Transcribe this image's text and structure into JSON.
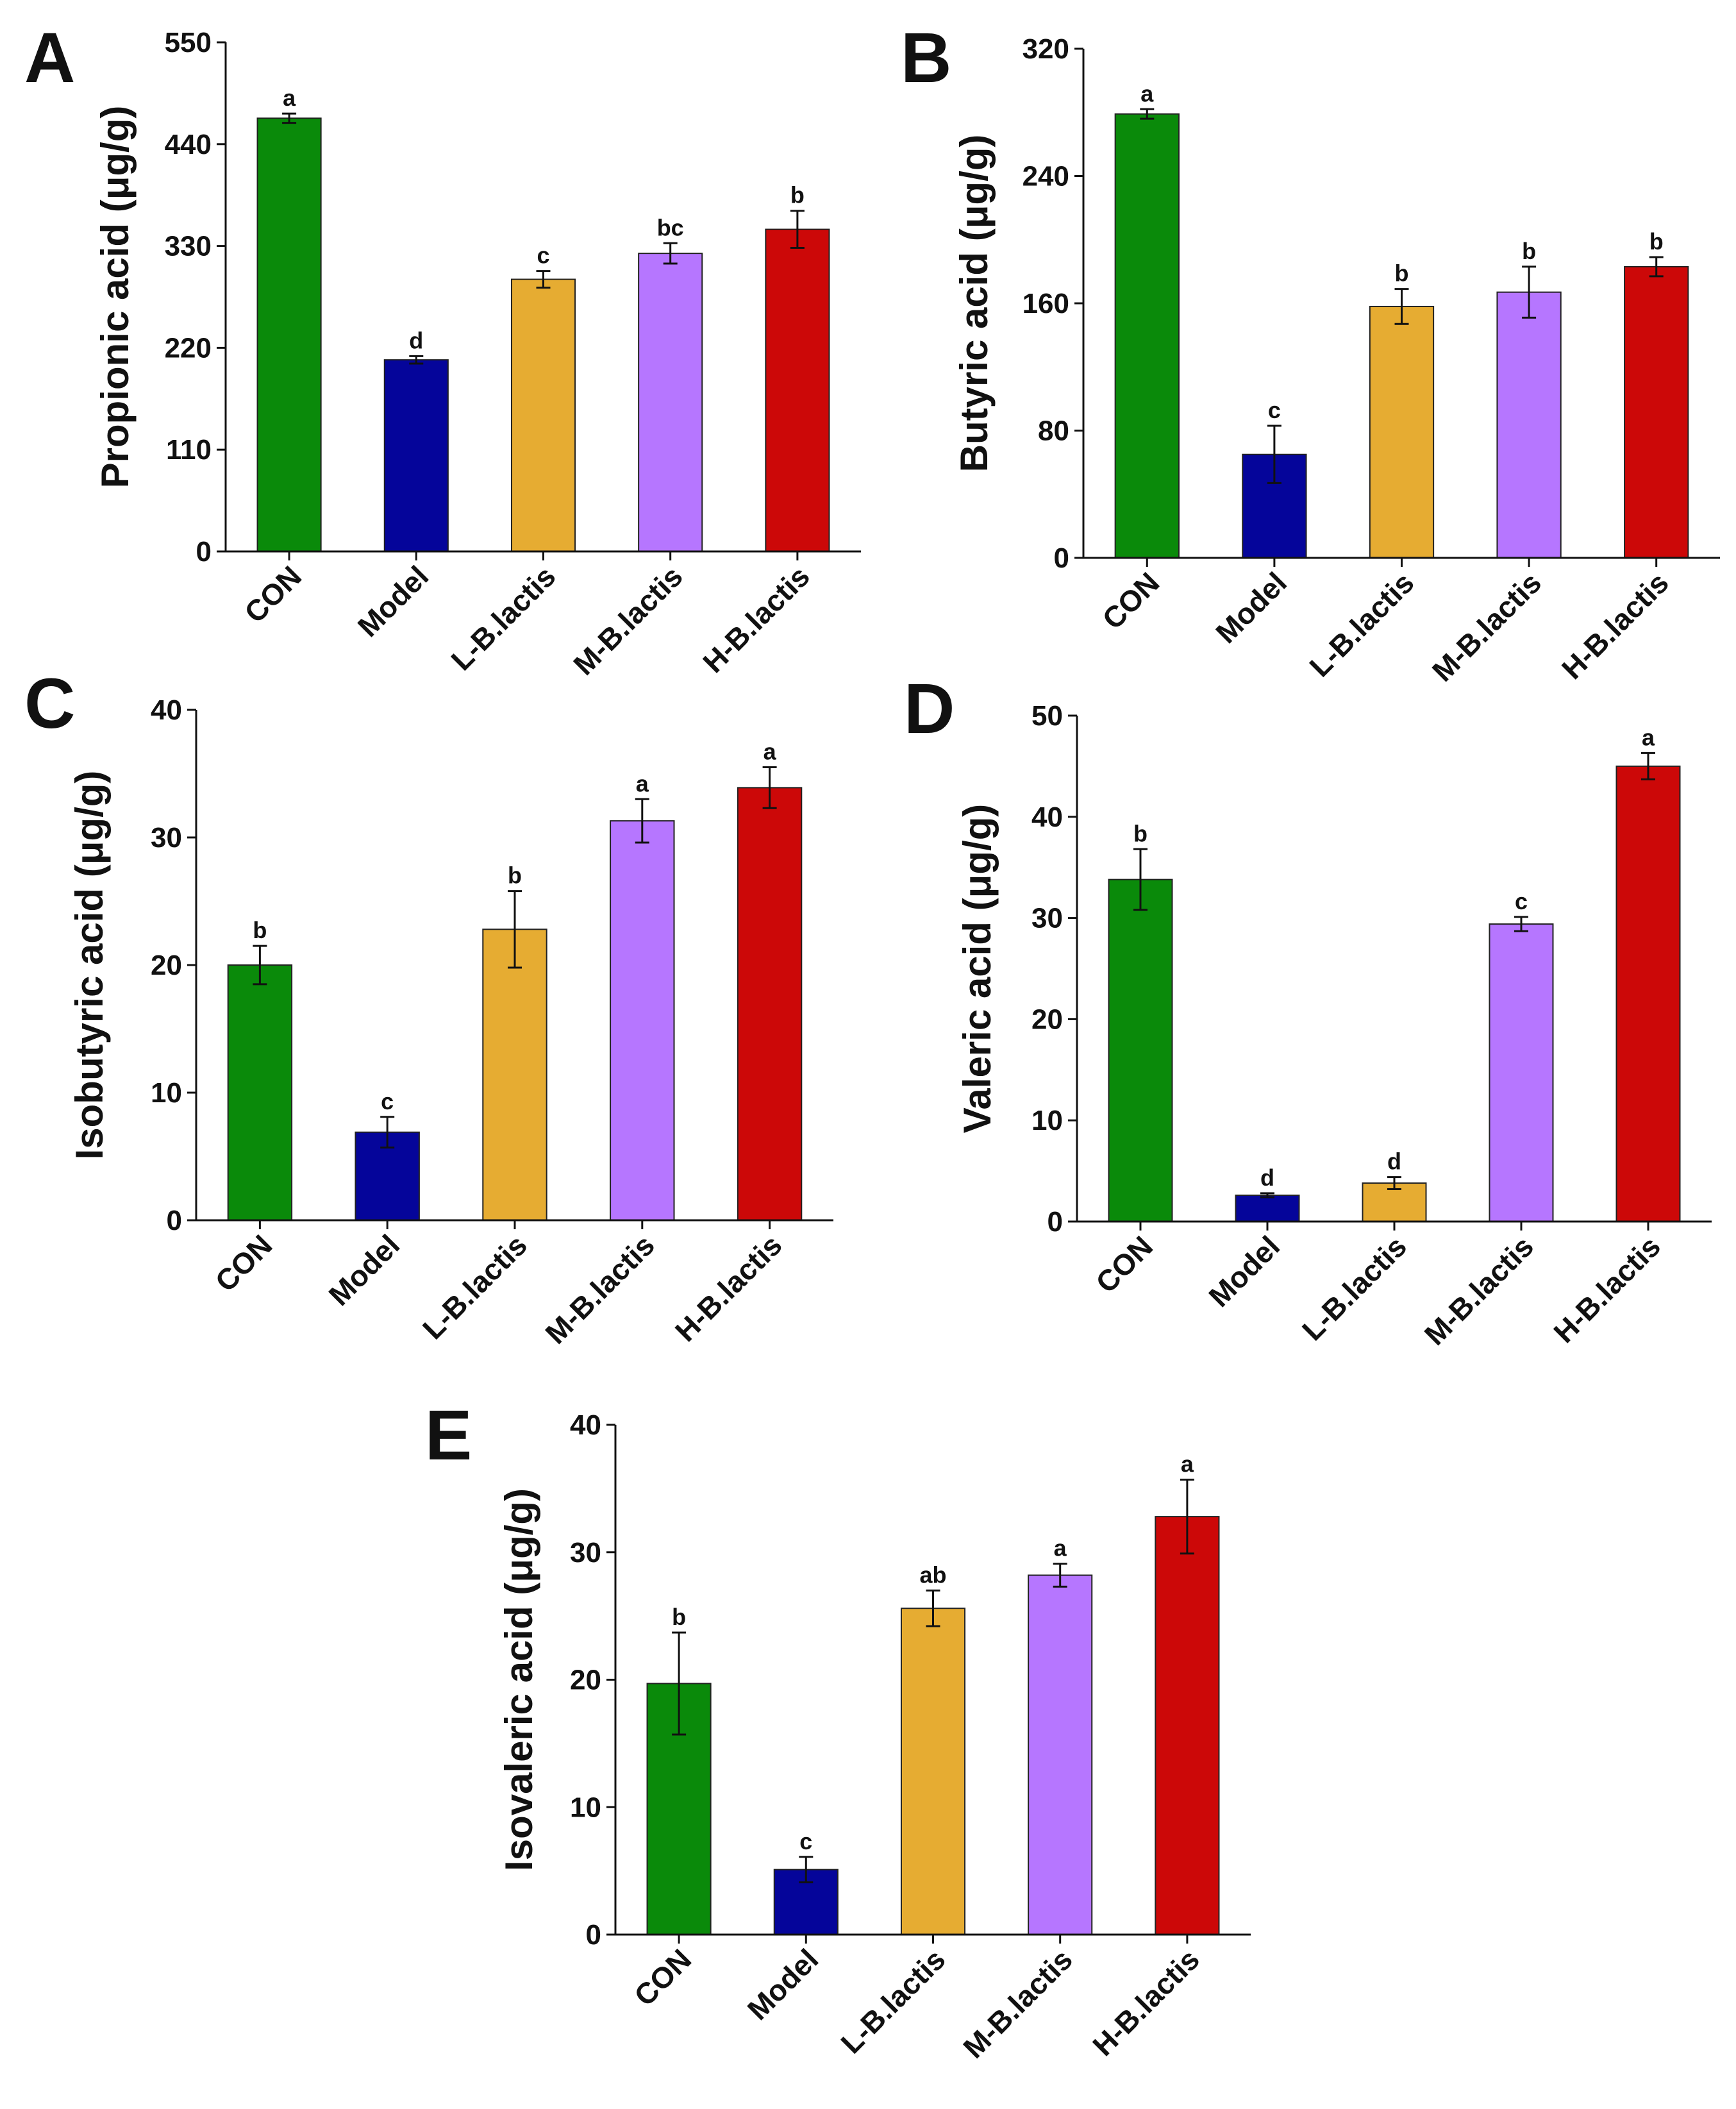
{
  "chart_data": [
    {
      "panel": "A",
      "type": "bar",
      "ylabel": "Propionic acid (μg/g)",
      "ylim": [
        0,
        550
      ],
      "yticks": [
        "0",
        "110",
        "220",
        "330",
        "440",
        "550"
      ],
      "categories": [
        "CON",
        "Model",
        "L-B.lactis",
        "M-B.lactis",
        "H-B.lactis"
      ],
      "values": [
        468,
        207,
        294,
        322,
        348
      ],
      "errors": [
        5,
        4,
        9,
        11,
        20
      ],
      "sig": [
        "a",
        "d",
        "c",
        "bc",
        "b"
      ],
      "colors": [
        "#0a8a0a",
        "#05059a",
        "#e6ac32",
        "#b676ff",
        "#cc0808"
      ]
    },
    {
      "panel": "B",
      "type": "bar",
      "ylabel": "Butyric acid (μg/g)",
      "ylim": [
        0,
        320
      ],
      "yticks": [
        "0",
        "80",
        "160",
        "240",
        "320"
      ],
      "categories": [
        "CON",
        "Model",
        "L-B.lactis",
        "M-B.lactis",
        "H-B.lactis"
      ],
      "values": [
        279,
        65,
        158,
        167,
        183
      ],
      "errors": [
        3,
        18,
        11,
        16,
        6
      ],
      "sig": [
        "a",
        "c",
        "b",
        "b",
        "b"
      ],
      "colors": [
        "#0a8a0a",
        "#05059a",
        "#e6ac32",
        "#b676ff",
        "#cc0808"
      ]
    },
    {
      "panel": "C",
      "type": "bar",
      "ylabel": "Isobutyric acid (μg/g)",
      "ylim": [
        0,
        40
      ],
      "yticks": [
        "0",
        "10",
        "20",
        "30",
        "40"
      ],
      "categories": [
        "CON",
        "Model",
        "L-B.lactis",
        "M-B.lactis",
        "H-B.lactis"
      ],
      "values": [
        20,
        6.9,
        22.8,
        31.3,
        33.9
      ],
      "errors": [
        1.5,
        1.2,
        3.0,
        1.7,
        1.6
      ],
      "sig": [
        "b",
        "c",
        "b",
        "a",
        "a"
      ],
      "colors": [
        "#0a8a0a",
        "#05059a",
        "#e6ac32",
        "#b676ff",
        "#cc0808"
      ]
    },
    {
      "panel": "D",
      "type": "bar",
      "ylabel": "Valeric acid (μg/g)",
      "ylim": [
        0,
        50
      ],
      "yticks": [
        "0",
        "10",
        "20",
        "30",
        "40",
        "50"
      ],
      "categories": [
        "CON",
        "Model",
        "L-B.lactis",
        "M-B.lactis",
        "H-B.lactis"
      ],
      "values": [
        33.8,
        2.6,
        3.8,
        29.4,
        45
      ],
      "errors": [
        3.0,
        0.2,
        0.6,
        0.7,
        1.3
      ],
      "sig": [
        "b",
        "d",
        "d",
        "c",
        "a"
      ],
      "colors": [
        "#0a8a0a",
        "#05059a",
        "#e6ac32",
        "#b676ff",
        "#cc0808"
      ]
    },
    {
      "panel": "E",
      "type": "bar",
      "ylabel": "Isovaleric acid (μg/g)",
      "ylim": [
        0,
        40
      ],
      "yticks": [
        "0",
        "10",
        "20",
        "30",
        "40"
      ],
      "categories": [
        "CON",
        "Model",
        "L-B.lactis",
        "M-B.lactis",
        "H-B.lactis"
      ],
      "values": [
        19.7,
        5.1,
        25.6,
        28.2,
        32.8
      ],
      "errors": [
        4.0,
        1.0,
        1.4,
        0.9,
        2.9
      ],
      "sig": [
        "b",
        "c",
        "ab",
        "a",
        "a"
      ],
      "colors": [
        "#0a8a0a",
        "#05059a",
        "#e6ac32",
        "#b676ff",
        "#cc0808"
      ]
    }
  ]
}
